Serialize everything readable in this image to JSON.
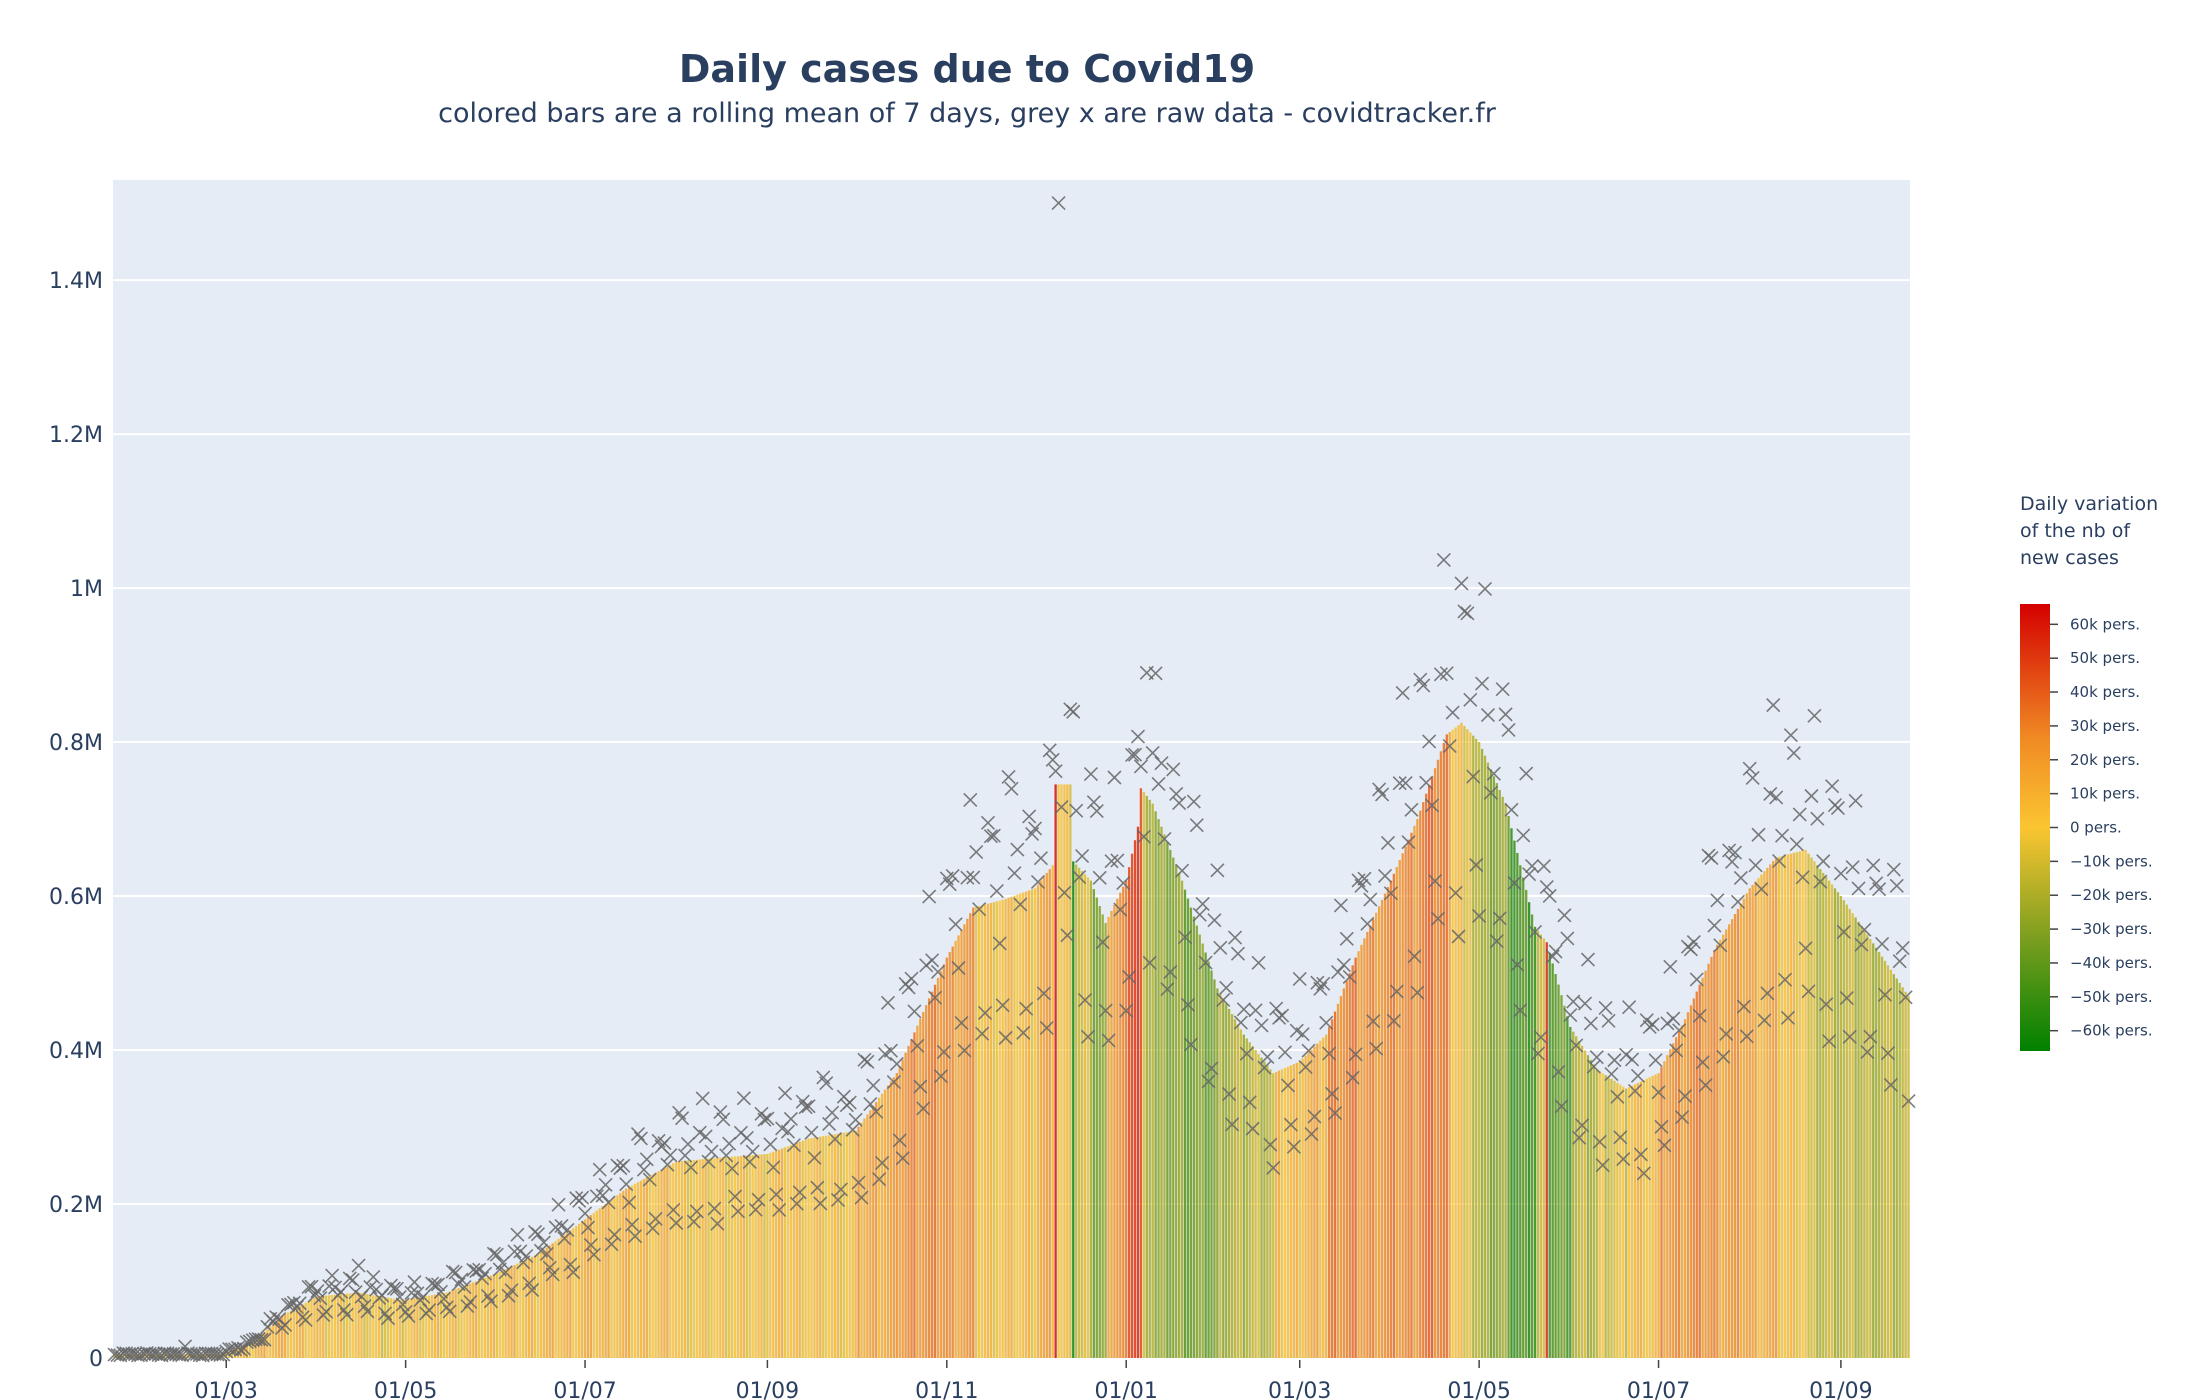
{
  "chart_data": {
    "type": "bar",
    "title": "Daily cases due to Covid19",
    "subtitle": "colored bars are a rolling mean of 7 days, grey x are raw data - covidtracker.fr",
    "xlabel": "",
    "ylabel": "",
    "x_range": [
      "2020-01-23",
      "2021-09-24"
    ],
    "ylim": [
      0,
      1530000
    ],
    "y_ticks": [
      {
        "value": 0,
        "label": "0"
      },
      {
        "value": 200000,
        "label": "0.2M"
      },
      {
        "value": 400000,
        "label": "0.4M"
      },
      {
        "value": 600000,
        "label": "0.6M"
      },
      {
        "value": 800000,
        "label": "0.8M"
      },
      {
        "value": 1000000,
        "label": "1M"
      },
      {
        "value": 1200000,
        "label": "1.2M"
      },
      {
        "value": 1400000,
        "label": "1.4M"
      }
    ],
    "x_ticks": [
      {
        "date": "2020-03-01",
        "label": "01/03"
      },
      {
        "date": "2020-05-01",
        "label": "01/05"
      },
      {
        "date": "2020-07-01",
        "label": "01/07"
      },
      {
        "date": "2020-09-01",
        "label": "01/09"
      },
      {
        "date": "2020-11-01",
        "label": "01/11"
      },
      {
        "date": "2021-01-01",
        "label": "01/01"
      },
      {
        "date": "2021-03-01",
        "label": "01/03"
      },
      {
        "date": "2021-05-01",
        "label": "01/05"
      },
      {
        "date": "2021-07-01",
        "label": "01/07"
      },
      {
        "date": "2021-09-01",
        "label": "01/09"
      }
    ],
    "series": [
      {
        "name": "rolling mean 7 days",
        "kind": "bar",
        "anchor_points": [
          [
            "2020-01-23",
            5000
          ],
          [
            "2020-02-28",
            5000
          ],
          [
            "2020-03-10",
            20000
          ],
          [
            "2020-03-20",
            55000
          ],
          [
            "2020-04-01",
            80000
          ],
          [
            "2020-04-15",
            85000
          ],
          [
            "2020-04-30",
            75000
          ],
          [
            "2020-05-15",
            85000
          ],
          [
            "2020-06-01",
            110000
          ],
          [
            "2020-06-15",
            135000
          ],
          [
            "2020-07-01",
            180000
          ],
          [
            "2020-07-15",
            220000
          ],
          [
            "2020-08-01",
            255000
          ],
          [
            "2020-08-15",
            260000
          ],
          [
            "2020-09-01",
            265000
          ],
          [
            "2020-09-15",
            285000
          ],
          [
            "2020-10-01",
            295000
          ],
          [
            "2020-10-15",
            370000
          ],
          [
            "2020-11-01",
            520000
          ],
          [
            "2020-11-10",
            585000
          ],
          [
            "2020-11-20",
            595000
          ],
          [
            "2020-12-01",
            610000
          ],
          [
            "2020-12-07",
            640000
          ],
          [
            "2020-12-08",
            745000
          ],
          [
            "2020-12-13",
            745000
          ],
          [
            "2020-12-14",
            645000
          ],
          [
            "2020-12-20",
            620000
          ],
          [
            "2020-12-25",
            565000
          ],
          [
            "2021-01-01",
            620000
          ],
          [
            "2021-01-05",
            690000
          ],
          [
            "2021-01-06",
            740000
          ],
          [
            "2021-01-10",
            720000
          ],
          [
            "2021-01-20",
            620000
          ],
          [
            "2021-02-01",
            480000
          ],
          [
            "2021-02-10",
            420000
          ],
          [
            "2021-02-20",
            370000
          ],
          [
            "2021-03-01",
            385000
          ],
          [
            "2021-03-10",
            420000
          ],
          [
            "2021-03-20",
            520000
          ],
          [
            "2021-04-01",
            620000
          ],
          [
            "2021-04-10",
            700000
          ],
          [
            "2021-04-20",
            810000
          ],
          [
            "2021-04-25",
            825000
          ],
          [
            "2021-05-01",
            800000
          ],
          [
            "2021-05-10",
            720000
          ],
          [
            "2021-05-20",
            560000
          ],
          [
            "2021-05-24",
            540000
          ],
          [
            "2021-06-01",
            430000
          ],
          [
            "2021-06-10",
            375000
          ],
          [
            "2021-06-20",
            350000
          ],
          [
            "2021-07-01",
            370000
          ],
          [
            "2021-07-10",
            440000
          ],
          [
            "2021-07-20",
            530000
          ],
          [
            "2021-08-01",
            610000
          ],
          [
            "2021-08-10",
            650000
          ],
          [
            "2021-08-20",
            660000
          ],
          [
            "2021-09-01",
            600000
          ],
          [
            "2021-09-10",
            550000
          ],
          [
            "2021-09-24",
            470000
          ]
        ],
        "variation_overrides": [
          [
            "2020-12-08",
            62000
          ],
          [
            "2020-12-14",
            -62000
          ],
          [
            "2021-01-06",
            45000
          ],
          [
            "2021-05-24",
            55000
          ],
          [
            "2021-05-19",
            -45000
          ]
        ]
      },
      {
        "name": "raw data",
        "kind": "scatter",
        "marker": "x",
        "weekday_factors": [
          1.18,
          1.22,
          1.1,
          1.04,
          0.98,
          0.75,
          0.72
        ],
        "outliers": [
          [
            "2020-12-09",
            1500000
          ],
          [
            "2021-01-08",
            890000
          ],
          [
            "2020-04-15",
            120000
          ],
          [
            "2020-02-16",
            15000
          ]
        ]
      }
    ],
    "colorbar": {
      "title_lines": [
        "Daily variation",
        "of the nb of",
        "new cases"
      ],
      "range": [
        -66000,
        66000
      ],
      "ticks": [
        {
          "value": 60000,
          "label": "60k pers."
        },
        {
          "value": 50000,
          "label": "50k pers."
        },
        {
          "value": 40000,
          "label": "40k pers."
        },
        {
          "value": 30000,
          "label": "30k pers."
        },
        {
          "value": 20000,
          "label": "20k pers."
        },
        {
          "value": 10000,
          "label": "10k pers."
        },
        {
          "value": 0,
          "label": "0 pers."
        },
        {
          "value": -10000,
          "label": "−10k pers."
        },
        {
          "value": -20000,
          "label": "−20k pers."
        },
        {
          "value": -30000,
          "label": "−30k pers."
        },
        {
          "value": -40000,
          "label": "−40k pers."
        },
        {
          "value": -50000,
          "label": "−50k pers."
        },
        {
          "value": -60000,
          "label": "−60k pers."
        }
      ],
      "colorscale": [
        [
          0,
          "#008000"
        ],
        [
          0.25,
          "#7a9e1f"
        ],
        [
          0.5,
          "#fbc531"
        ],
        [
          0.7,
          "#f08a24"
        ],
        [
          1,
          "#d40000"
        ]
      ]
    },
    "colors": {
      "plot_bg": "#e5ecf6",
      "grid": "#ffffff",
      "marker": "#666666"
    }
  }
}
